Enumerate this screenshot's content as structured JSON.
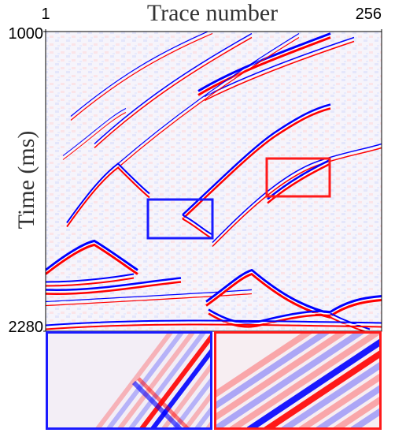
{
  "chart_data": {
    "type": "image",
    "title": "Trace number",
    "y_label": "Time (ms)",
    "xlim": [
      1,
      256
    ],
    "xticks": [
      1,
      256
    ],
    "ylim": [
      2280,
      1000
    ],
    "yticks": [
      1000,
      2280
    ],
    "colormap": [
      "#0000ff",
      "#ffffff",
      "#ff0000"
    ],
    "box_colors": [
      "#1a1aff",
      "#ff1a1a"
    ]
  }
}
